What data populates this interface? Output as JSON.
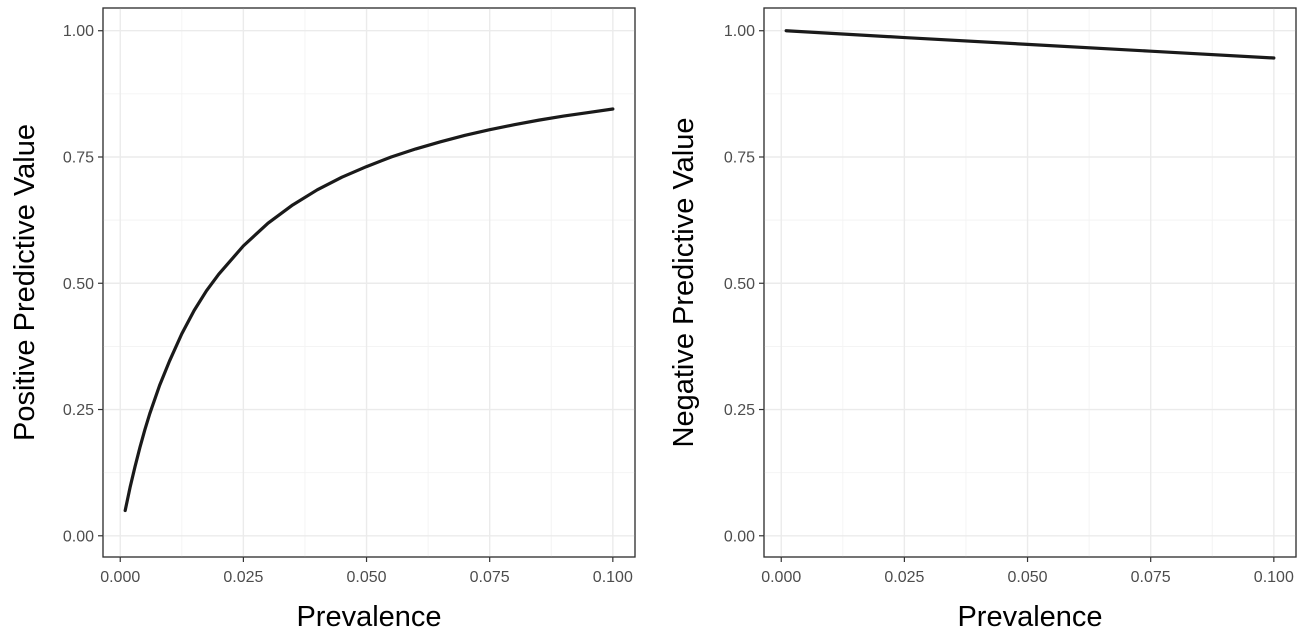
{
  "chart_data": [
    {
      "type": "line",
      "xlabel": "Prevalence",
      "ylabel": "Positive Predictive Value",
      "xlim": [
        -0.0035,
        0.1045
      ],
      "ylim": [
        -0.042,
        1.045
      ],
      "x_ticks": [
        0.0,
        0.025,
        0.05,
        0.075,
        0.1
      ],
      "x_tick_labels": [
        "0.000",
        "0.025",
        "0.050",
        "0.075",
        "0.100"
      ],
      "y_ticks": [
        0.0,
        0.25,
        0.5,
        0.75,
        1.0
      ],
      "y_tick_labels": [
        "0.00",
        "0.25",
        "0.50",
        "0.75",
        "1.00"
      ],
      "grid": true,
      "line_color": "#1a1a1a",
      "series": [
        {
          "x": [
            0.001,
            0.002,
            0.003,
            0.004,
            0.005,
            0.006,
            0.008,
            0.01,
            0.0125,
            0.015,
            0.0175,
            0.02,
            0.025,
            0.03,
            0.035,
            0.04,
            0.045,
            0.05,
            0.055,
            0.06,
            0.065,
            0.07,
            0.075,
            0.08,
            0.085,
            0.09,
            0.095,
            0.1
          ],
          "values": [
            0.05,
            0.096,
            0.137,
            0.175,
            0.21,
            0.242,
            0.298,
            0.346,
            0.4,
            0.446,
            0.485,
            0.518,
            0.574,
            0.619,
            0.655,
            0.685,
            0.71,
            0.731,
            0.75,
            0.766,
            0.78,
            0.793,
            0.804,
            0.814,
            0.823,
            0.831,
            0.838,
            0.845
          ]
        }
      ]
    },
    {
      "type": "line",
      "xlabel": "Prevalence",
      "ylabel": "Negative Predictive Value",
      "xlim": [
        -0.0035,
        0.1045
      ],
      "ylim": [
        -0.042,
        1.045
      ],
      "x_ticks": [
        0.0,
        0.025,
        0.05,
        0.075,
        0.1
      ],
      "x_tick_labels": [
        "0.000",
        "0.025",
        "0.050",
        "0.075",
        "0.100"
      ],
      "y_ticks": [
        0.0,
        0.25,
        0.5,
        0.75,
        1.0
      ],
      "y_tick_labels": [
        "0.00",
        "0.25",
        "0.50",
        "0.75",
        "1.00"
      ],
      "grid": true,
      "line_color": "#1a1a1a",
      "series": [
        {
          "x": [
            0.001,
            0.025,
            0.05,
            0.075,
            0.1
          ],
          "values": [
            1.0,
            0.9865,
            0.973,
            0.9595,
            0.946
          ]
        }
      ]
    }
  ]
}
